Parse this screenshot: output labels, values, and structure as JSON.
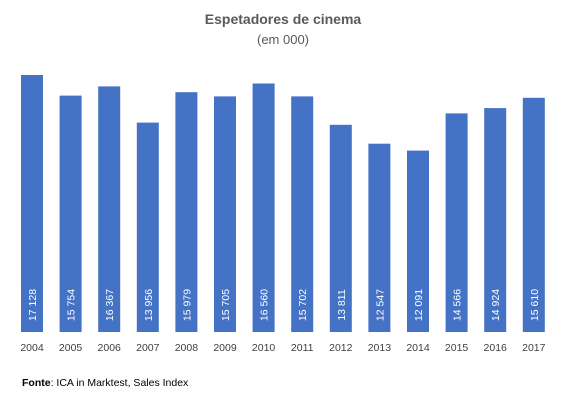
{
  "chart_data": {
    "type": "bar",
    "title": "Espetadores de cinema",
    "subtitle": "(em 000)",
    "categories": [
      "2004",
      "2005",
      "2006",
      "2007",
      "2008",
      "2009",
      "2010",
      "2011",
      "2012",
      "2013",
      "2014",
      "2015",
      "2016",
      "2017"
    ],
    "values": [
      17128,
      15754,
      16367,
      13956,
      15979,
      15705,
      16560,
      15702,
      13811,
      12547,
      12091,
      14566,
      14924,
      15610
    ],
    "value_labels": [
      "17 128",
      "15 754",
      "16 367",
      "13 956",
      "15 979",
      "15 705",
      "16 560",
      "15 702",
      "13 811",
      "12 547",
      "12 091",
      "14 566",
      "14 924",
      "15 610"
    ],
    "ylim": [
      0,
      17128
    ],
    "grid": false,
    "legend": "none",
    "bar_color": "#4472c4"
  },
  "source": {
    "label": "Fonte",
    "text": ": ICA in Marktest, Sales Index"
  }
}
